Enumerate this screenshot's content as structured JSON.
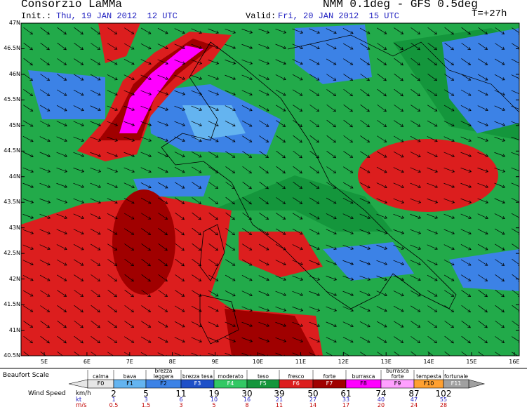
{
  "header": {
    "title": "Consorzio LaMMa",
    "init_label": "Init.:",
    "init_time": "Thu, 19 JAN 2012  12 UTC",
    "valid_label": "Valid:",
    "valid_time": "Fri, 20 JAN 2012  15 UTC",
    "model": "NMM 0.1deg - GFS 0.5deg",
    "lead_time": "T=+27h"
  },
  "map": {
    "lat_labels": [
      "47N",
      "46.5N",
      "46N",
      "45.5N",
      "45N",
      "44.5N",
      "44N",
      "43.5N",
      "43N",
      "42.5N",
      "42N",
      "41.5N",
      "41N",
      "40.5N"
    ],
    "lon_labels": [
      "5E",
      "6E",
      "7E",
      "8E",
      "9E",
      "10E",
      "11E",
      "12E",
      "13E",
      "14E",
      "15E",
      "16E"
    ]
  },
  "legend": {
    "scale_label": "Beaufort Scale",
    "speed_label": "Wind Speed",
    "units": [
      "km/h",
      "kt",
      "m/s"
    ],
    "classes": [
      {
        "name": "calma",
        "code": "F0",
        "color": "#e6e6e6"
      },
      {
        "name": "bava",
        "code": "F1",
        "color": "#64b4f0"
      },
      {
        "name": "brezza leggera",
        "code": "F2",
        "color": "#3c82e6"
      },
      {
        "name": "brezza tesa",
        "code": "F3",
        "color": "#1e50c8"
      },
      {
        "name": "moderato",
        "code": "F4",
        "color": "#32c864"
      },
      {
        "name": "teso",
        "code": "F5",
        "color": "#14963c"
      },
      {
        "name": "fresco",
        "code": "F6",
        "color": "#dc1e1e"
      },
      {
        "name": "forte",
        "code": "F7",
        "color": "#a00000"
      },
      {
        "name": "burrasca",
        "code": "F8",
        "color": "#ff00ff"
      },
      {
        "name": "burrasca forte",
        "code": "F9",
        "color": "#ffa0ff"
      },
      {
        "name": "tempesta",
        "code": "F10",
        "color": "#ffa030"
      },
      {
        "name": "fortunale",
        "code": "F11",
        "color": "#a0a0a0"
      }
    ],
    "kmh": [
      2,
      5,
      11,
      19,
      30,
      39,
      50,
      61,
      74,
      87,
      102
    ],
    "kt": [
      1,
      3,
      6,
      10,
      16,
      21,
      27,
      33,
      40,
      47,
      55
    ],
    "ms": [
      0.5,
      1.5,
      3,
      5,
      8,
      11,
      14,
      17,
      20,
      24,
      28
    ]
  }
}
